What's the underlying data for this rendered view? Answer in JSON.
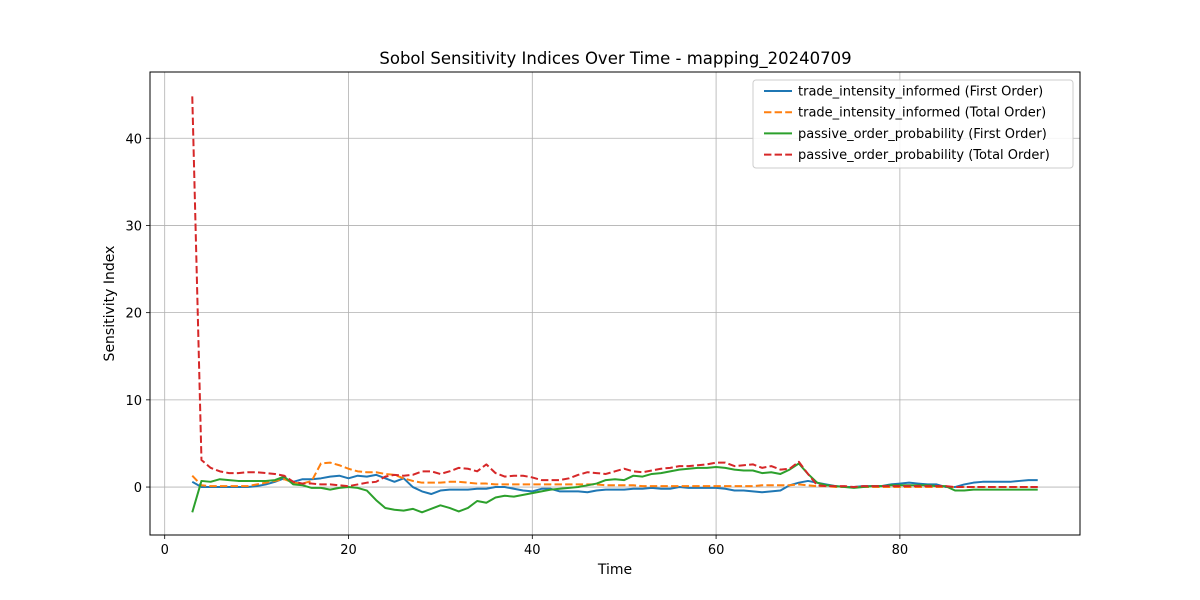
{
  "chart_data": {
    "type": "line",
    "title": "Sobol Sensitivity Indices Over Time - mapping_20240709",
    "xlabel": "Time",
    "ylabel": "Sensitivity Index",
    "xlim": [
      -1.6,
      99.6
    ],
    "ylim": [
      -5.5,
      47.6
    ],
    "xticks": [
      0,
      20,
      40,
      60,
      80
    ],
    "yticks": [
      0,
      10,
      20,
      30,
      40
    ],
    "grid": true,
    "legend_position": "top-right",
    "x": [
      3,
      4,
      5,
      6,
      7,
      8,
      9,
      10,
      11,
      12,
      13,
      14,
      15,
      16,
      17,
      18,
      19,
      20,
      21,
      22,
      23,
      24,
      25,
      26,
      27,
      28,
      29,
      30,
      31,
      32,
      33,
      34,
      35,
      36,
      37,
      38,
      39,
      40,
      41,
      42,
      43,
      44,
      45,
      46,
      47,
      48,
      49,
      50,
      51,
      52,
      53,
      54,
      55,
      56,
      57,
      58,
      59,
      60,
      61,
      62,
      63,
      64,
      65,
      66,
      67,
      68,
      69,
      70,
      71,
      72,
      73,
      74,
      75,
      76,
      77,
      78,
      79,
      80,
      81,
      82,
      83,
      84,
      85,
      86,
      87,
      88,
      89,
      90,
      91,
      92,
      93,
      94,
      95
    ],
    "series": [
      {
        "name": "trade_intensity_informed (First Order)",
        "color": "#1f77b4",
        "style": "solid",
        "values": [
          0.6,
          0.0,
          0.0,
          0.0,
          0.0,
          0.0,
          0.0,
          0.1,
          0.3,
          0.6,
          1.0,
          0.6,
          0.9,
          0.9,
          1.0,
          1.2,
          1.3,
          1.0,
          1.3,
          1.2,
          1.4,
          1.0,
          0.6,
          1.0,
          0.0,
          -0.5,
          -0.8,
          -0.4,
          -0.3,
          -0.3,
          -0.3,
          -0.2,
          -0.2,
          0.0,
          0.0,
          -0.2,
          -0.4,
          -0.5,
          -0.2,
          -0.2,
          -0.5,
          -0.5,
          -0.5,
          -0.6,
          -0.4,
          -0.3,
          -0.3,
          -0.3,
          -0.2,
          -0.2,
          -0.1,
          -0.2,
          -0.2,
          0.0,
          -0.1,
          -0.1,
          -0.1,
          -0.1,
          -0.2,
          -0.4,
          -0.4,
          -0.5,
          -0.6,
          -0.5,
          -0.4,
          0.2,
          0.5,
          0.7,
          0.5,
          0.3,
          0.1,
          0.0,
          0.0,
          0.1,
          0.1,
          0.1,
          0.3,
          0.4,
          0.5,
          0.4,
          0.3,
          0.3,
          0.0,
          0.0,
          0.3,
          0.5,
          0.6,
          0.6,
          0.6,
          0.6,
          0.7,
          0.8,
          0.8
        ]
      },
      {
        "name": "trade_intensity_informed (Total Order)",
        "color": "#ff7f0e",
        "style": "dashed",
        "values": [
          1.3,
          0.2,
          0.1,
          0.1,
          0.1,
          0.1,
          0.1,
          0.3,
          0.5,
          0.7,
          0.9,
          0.5,
          0.4,
          0.7,
          2.7,
          2.8,
          2.5,
          2.1,
          1.8,
          1.7,
          1.7,
          1.5,
          1.4,
          1.0,
          0.7,
          0.5,
          0.5,
          0.5,
          0.6,
          0.6,
          0.5,
          0.4,
          0.4,
          0.3,
          0.3,
          0.3,
          0.3,
          0.3,
          0.3,
          0.3,
          0.3,
          0.3,
          0.3,
          0.3,
          0.3,
          0.2,
          0.2,
          0.2,
          0.2,
          0.1,
          0.1,
          0.1,
          0.1,
          0.1,
          0.1,
          0.1,
          0.1,
          0.1,
          0.1,
          0.1,
          0.1,
          0.1,
          0.2,
          0.2,
          0.2,
          0.2,
          0.3,
          0.2,
          0.1,
          0.1,
          0.0,
          0.0,
          0.0,
          0.0,
          0.0,
          0.0,
          0.0,
          0.0,
          0.0,
          0.0,
          0.0,
          0.0,
          0.0,
          0.0,
          0.0,
          0.0,
          0.0,
          0.0,
          0.0,
          0.0,
          0.0,
          0.0,
          0.0
        ]
      },
      {
        "name": "passive_order_probability (First Order)",
        "color": "#2ca02c",
        "style": "solid",
        "values": [
          -2.9,
          0.7,
          0.6,
          0.9,
          0.8,
          0.7,
          0.7,
          0.7,
          0.7,
          0.8,
          1.2,
          0.3,
          0.2,
          -0.1,
          -0.1,
          -0.3,
          -0.1,
          0.0,
          -0.1,
          -0.4,
          -1.5,
          -2.4,
          -2.6,
          -2.7,
          -2.5,
          -2.9,
          -2.5,
          -2.1,
          -2.4,
          -2.8,
          -2.4,
          -1.6,
          -1.8,
          -1.2,
          -1.0,
          -1.1,
          -0.9,
          -0.7,
          -0.5,
          -0.3,
          -0.2,
          -0.1,
          0.0,
          0.2,
          0.4,
          0.8,
          0.9,
          0.8,
          1.3,
          1.2,
          1.5,
          1.6,
          1.8,
          2.0,
          2.1,
          2.2,
          2.2,
          2.3,
          2.2,
          2.0,
          1.9,
          1.9,
          1.6,
          1.7,
          1.5,
          2.0,
          2.7,
          1.5,
          0.5,
          0.2,
          0.1,
          0.0,
          -0.1,
          0.0,
          0.1,
          0.1,
          0.2,
          0.2,
          0.2,
          0.2,
          0.2,
          0.1,
          0.1,
          -0.4,
          -0.4,
          -0.3,
          -0.3,
          -0.3,
          -0.3,
          -0.3,
          -0.3,
          -0.3,
          -0.3
        ]
      },
      {
        "name": "passive_order_probability (Total Order)",
        "color": "#d62728",
        "style": "dashed",
        "values": [
          44.8,
          3.1,
          2.2,
          1.8,
          1.6,
          1.6,
          1.7,
          1.7,
          1.6,
          1.5,
          1.3,
          0.6,
          0.4,
          0.4,
          0.3,
          0.3,
          0.2,
          0.1,
          0.3,
          0.5,
          0.6,
          1.2,
          1.4,
          1.3,
          1.4,
          1.8,
          1.8,
          1.5,
          1.8,
          2.2,
          2.1,
          1.8,
          2.6,
          1.6,
          1.2,
          1.3,
          1.3,
          1.1,
          0.8,
          0.8,
          0.8,
          1.0,
          1.4,
          1.7,
          1.6,
          1.5,
          1.8,
          2.1,
          1.8,
          1.7,
          1.9,
          2.1,
          2.2,
          2.4,
          2.4,
          2.5,
          2.6,
          2.8,
          2.8,
          2.4,
          2.5,
          2.6,
          2.2,
          2.4,
          2.0,
          2.1,
          2.9,
          1.5,
          0.2,
          0.1,
          0.1,
          0.1,
          0.0,
          0.1,
          0.1,
          0.1,
          0.1,
          0.1,
          0.1,
          0.1,
          0.1,
          0.1,
          0.1,
          0.0,
          0.0,
          0.0,
          0.0,
          0.0,
          0.0,
          0.0,
          0.0,
          0.0,
          0.0
        ]
      }
    ]
  }
}
